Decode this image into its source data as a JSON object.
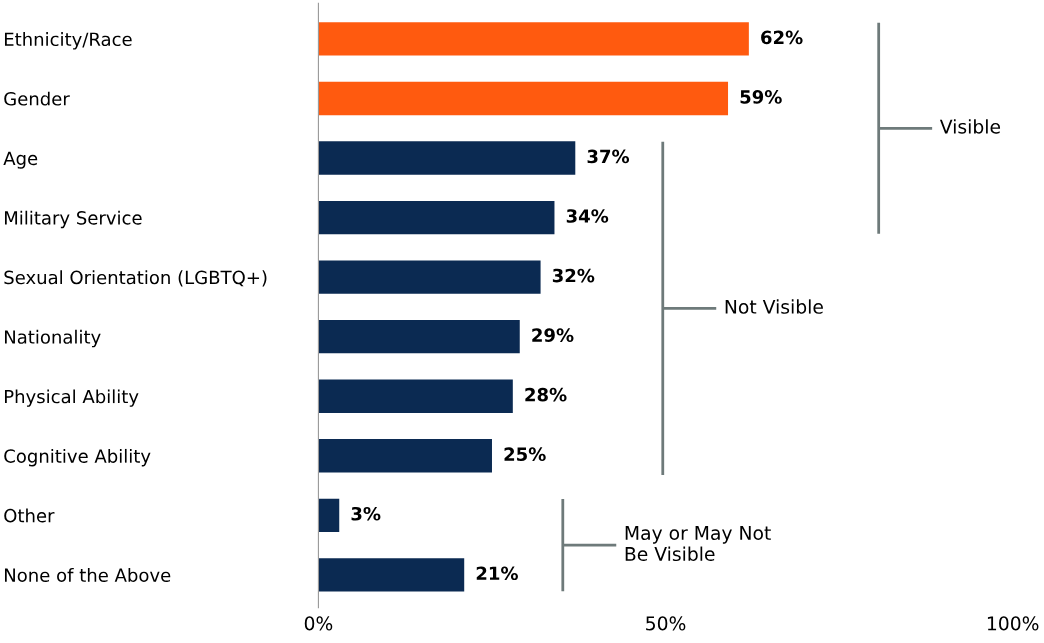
{
  "chart_data": {
    "type": "bar",
    "orientation": "horizontal",
    "categories": [
      "Ethnicity/Race",
      "Gender",
      "Age",
      "Military Service",
      "Sexual Orientation (LGBTQ+)",
      "Nationality",
      "Physical Ability",
      "Cognitive Ability",
      "Other",
      "None of the Above"
    ],
    "values": [
      62,
      59,
      37,
      34,
      32,
      29,
      28,
      25,
      3,
      21
    ],
    "colors": [
      "#ff5a0f",
      "#ff5a0f",
      "#0b2a52",
      "#0b2a52",
      "#0b2a52",
      "#0b2a52",
      "#0b2a52",
      "#0b2a52",
      "#0b2a52",
      "#0b2a52"
    ],
    "value_labels": [
      "62%",
      "59%",
      "37%",
      "34%",
      "32%",
      "29%",
      "28%",
      "25%",
      "3%",
      "21%"
    ],
    "xlim": [
      0,
      100
    ],
    "xticks": [
      {
        "value": 0,
        "label": "0%"
      },
      {
        "value": 50,
        "label": "50%"
      },
      {
        "value": 100,
        "label": "100%"
      }
    ],
    "grid": false,
    "legend": false,
    "annotations": [
      "Visible",
      "Not Visible",
      "May or May Not\nBe Visible"
    ]
  }
}
